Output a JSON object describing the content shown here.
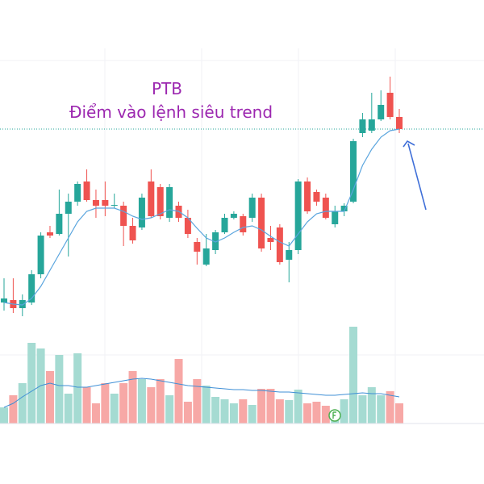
{
  "chart_data": {
    "type": "candlestick",
    "title": "PTB",
    "subtitle": "Điểm vào lệnh siêu trend",
    "open": [
      45,
      48,
      38,
      45,
      80,
      132,
      130,
      155,
      170,
      195,
      172,
      172,
      165,
      165,
      140,
      138,
      195,
      188,
      150,
      165,
      150,
      120,
      92,
      110,
      132,
      150,
      152,
      150,
      175,
      125,
      138,
      98,
      110,
      195,
      182,
      175,
      142,
      158,
      170,
      255,
      258,
      272,
      305,
      275
    ],
    "high": [
      75,
      75,
      55,
      85,
      132,
      140,
      185,
      180,
      195,
      210,
      185,
      195,
      180,
      170,
      150,
      180,
      210,
      192,
      192,
      170,
      160,
      125,
      130,
      135,
      155,
      158,
      155,
      180,
      180,
      140,
      142,
      120,
      198,
      200,
      185,
      180,
      165,
      168,
      248,
      280,
      305,
      308,
      325,
      285
    ],
    "low": [
      35,
      32,
      28,
      42,
      75,
      125,
      128,
      102,
      165,
      170,
      150,
      152,
      162,
      115,
      118,
      135,
      150,
      148,
      145,
      145,
      125,
      92,
      90,
      105,
      130,
      148,
      128,
      145,
      108,
      110,
      92,
      70,
      105,
      155,
      165,
      148,
      138,
      152,
      168,
      250,
      255,
      270,
      272,
      255
    ],
    "close": [
      50,
      38,
      48,
      80,
      128,
      128,
      155,
      170,
      192,
      172,
      165,
      165,
      166,
      140,
      122,
      175,
      152,
      152,
      188,
      150,
      130,
      108,
      112,
      132,
      150,
      155,
      132,
      175,
      112,
      120,
      95,
      110,
      195,
      158,
      170,
      150,
      158,
      165,
      245,
      272,
      272,
      290,
      275,
      260
    ],
    "ma": [
      45,
      43,
      42,
      50,
      65,
      85,
      105,
      125,
      145,
      158,
      162,
      162,
      162,
      158,
      152,
      148,
      150,
      155,
      160,
      158,
      150,
      137,
      125,
      120,
      125,
      132,
      138,
      140,
      135,
      127,
      120,
      115,
      130,
      145,
      155,
      158,
      158,
      158,
      185,
      215,
      235,
      250,
      258,
      260
    ],
    "volume": [
      20,
      35,
      50,
      100,
      93,
      65,
      85,
      37,
      87,
      45,
      25,
      50,
      37,
      50,
      65,
      55,
      45,
      55,
      35,
      80,
      27,
      55,
      47,
      33,
      30,
      25,
      30,
      23,
      43,
      43,
      30,
      29,
      42,
      25,
      27,
      22,
      15,
      30,
      120,
      35,
      45,
      35,
      40,
      25
    ],
    "volume_ma": [
      20,
      25,
      33,
      40,
      47,
      50,
      47,
      47,
      45,
      45,
      47,
      49,
      51,
      53,
      55,
      56,
      55,
      53,
      51,
      49,
      47,
      46,
      45,
      44,
      43,
      42,
      42,
      41,
      41,
      40,
      39,
      39,
      38,
      37,
      36,
      35,
      35,
      36,
      37,
      38,
      37,
      37,
      35,
      33
    ],
    "level": 260,
    "ylim": [
      20,
      360
    ],
    "volume_ylim": [
      0,
      125
    ],
    "up_color": "#26a69a",
    "down_color": "#ef5350",
    "volume_up_color": "#a5dbd2",
    "volume_down_color": "#f7a8a6",
    "ma_color": "#5aa5de",
    "volume_ma_color": "#3f8fd6",
    "level_color": "#26a69a"
  }
}
